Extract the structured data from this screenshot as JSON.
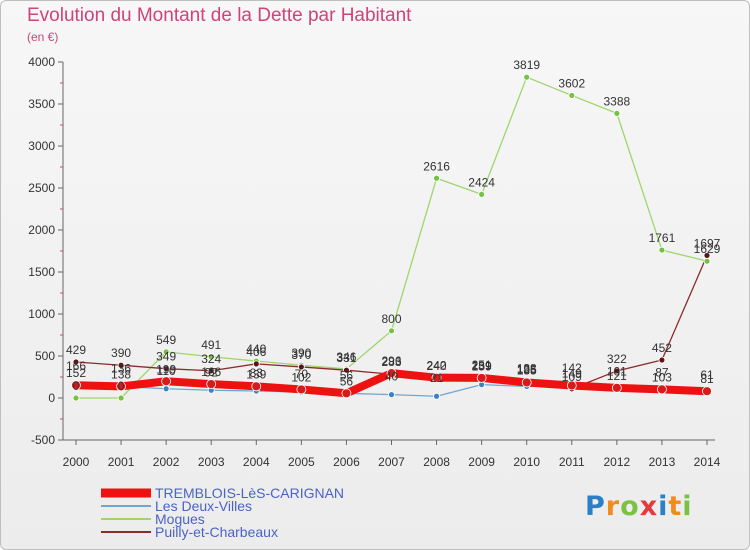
{
  "chart_data": {
    "type": "line",
    "title": "Evolution du Montant de la Dette par Habitant",
    "subtitle": "(en €)",
    "x": [
      "2000",
      "2001",
      "2002",
      "2003",
      "2004",
      "2005",
      "2006",
      "2007",
      "2008",
      "2009",
      "2010",
      "2011",
      "2012",
      "2013",
      "2014"
    ],
    "ylim": [
      -500,
      4000
    ],
    "yticks": [
      -500,
      0,
      500,
      1000,
      1500,
      2000,
      2500,
      3000,
      3500,
      4000
    ],
    "grid": false,
    "legend_position": "bottom-left",
    "series": [
      {
        "name": "TREMBLOIS-LèS-CARIGNAN",
        "color": "#ee1111",
        "marker": "#d81a1a",
        "width": 8,
        "values": [
          152,
          138,
          199,
          166,
          139,
          102,
          56,
          296,
          242,
          239,
          185,
          149,
          121,
          103,
          81
        ],
        "labels": [
          "152",
          "138",
          "199",
          "166",
          "139",
          "102",
          "56",
          "296",
          "242",
          "239",
          "185",
          "149",
          "121",
          "103",
          "81"
        ]
      },
      {
        "name": "Les Deux-Villes",
        "color": "#6fa7d4",
        "marker": "#3b82c4",
        "width": 1.3,
        "values": [
          166,
          136,
          110,
          92,
          83,
          70,
          56,
          40,
          21,
          159,
          138,
          142,
          101,
          87,
          61
        ],
        "labels": [
          "166",
          "136",
          "110",
          "92",
          "83",
          "70",
          "56",
          "40",
          "21",
          "159",
          "138",
          "142",
          "101",
          "87",
          "61"
        ]
      },
      {
        "name": "Mogues",
        "color": "#9ed66a",
        "marker": "#76c043",
        "width": 1.3,
        "values": [
          0,
          0,
          549,
          491,
          440,
          390,
          346,
          800,
          2616,
          2424,
          3819,
          3602,
          3388,
          1761,
          1629
        ],
        "labels": [
          "0",
          "0",
          "549",
          "491",
          "440",
          "390",
          "346",
          "800",
          "2616",
          "2424",
          "3819",
          "3602",
          "3388",
          "1761",
          "1629"
        ]
      },
      {
        "name": "Puilly-et-Charbeaux",
        "color": "#8a2c2c",
        "marker": "#5a1414",
        "width": 1.3,
        "values": [
          429,
          390,
          349,
          324,
          406,
          370,
          331,
          283,
          240,
          251,
          195,
          109,
          322,
          452,
          1697
        ],
        "labels": [
          "429",
          "390",
          "349",
          "324",
          "406",
          "370",
          "331",
          "283",
          "240",
          "251",
          "195",
          "109",
          "322",
          "452",
          "1697"
        ]
      }
    ]
  },
  "logo": {
    "letters": [
      "P",
      "r",
      "o",
      "x",
      "i",
      "t",
      "i"
    ],
    "colors": [
      "#2a7fc6",
      "#f08b1d",
      "#7cc242",
      "#e23b3b",
      "#2a7fc6",
      "#f08b1d",
      "#7cc242"
    ]
  }
}
